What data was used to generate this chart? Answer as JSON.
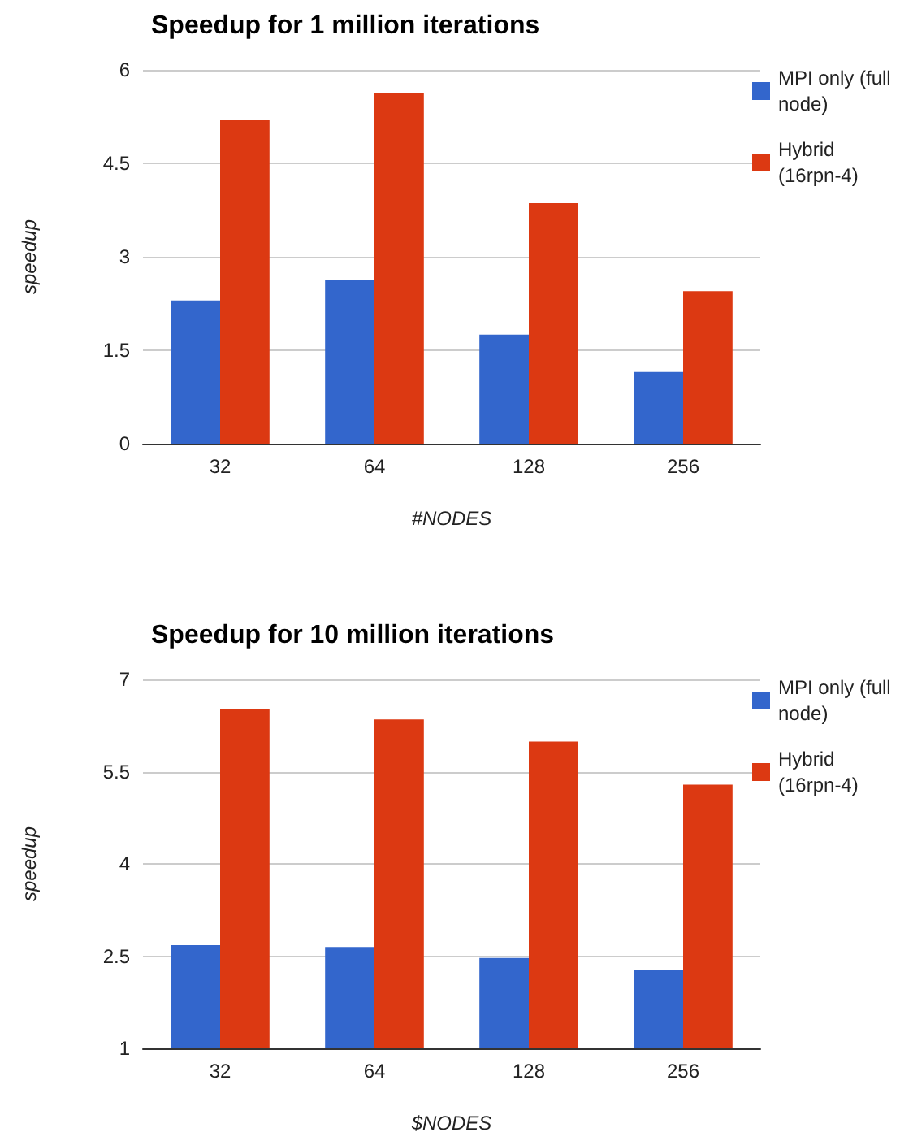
{
  "chart_data": [
    {
      "type": "bar",
      "title": "Speedup for 1 million iterations",
      "xlabel": "#NODES",
      "ylabel": "speedup",
      "categories": [
        "32",
        "64",
        "128",
        "256"
      ],
      "series": [
        {
          "name": "MPI only (full node)",
          "color": "#3366cc",
          "values": [
            2.3,
            2.63,
            1.75,
            1.15
          ]
        },
        {
          "name": "Hybrid (16rpn-4)",
          "color": "#dc3912",
          "values": [
            5.19,
            5.63,
            3.86,
            2.45
          ]
        }
      ],
      "ylim": [
        0,
        6
      ],
      "yticks": [
        0,
        1.5,
        3,
        4.5,
        6
      ],
      "grid": "y",
      "legend": "right"
    },
    {
      "type": "bar",
      "title": "Speedup for 10 million iterations",
      "xlabel": "$NODES",
      "ylabel": "speedup",
      "categories": [
        "32",
        "64",
        "128",
        "256"
      ],
      "series": [
        {
          "name": "MPI only (full node)",
          "color": "#3366cc",
          "values": [
            2.68,
            2.65,
            2.47,
            2.27
          ]
        },
        {
          "name": "Hybrid (16rpn-4)",
          "color": "#dc3912",
          "values": [
            6.51,
            6.35,
            5.99,
            5.29
          ]
        }
      ],
      "ylim": [
        1,
        7
      ],
      "yticks": [
        1,
        2.5,
        4,
        5.5,
        7
      ],
      "grid": "y",
      "legend": "right"
    }
  ]
}
